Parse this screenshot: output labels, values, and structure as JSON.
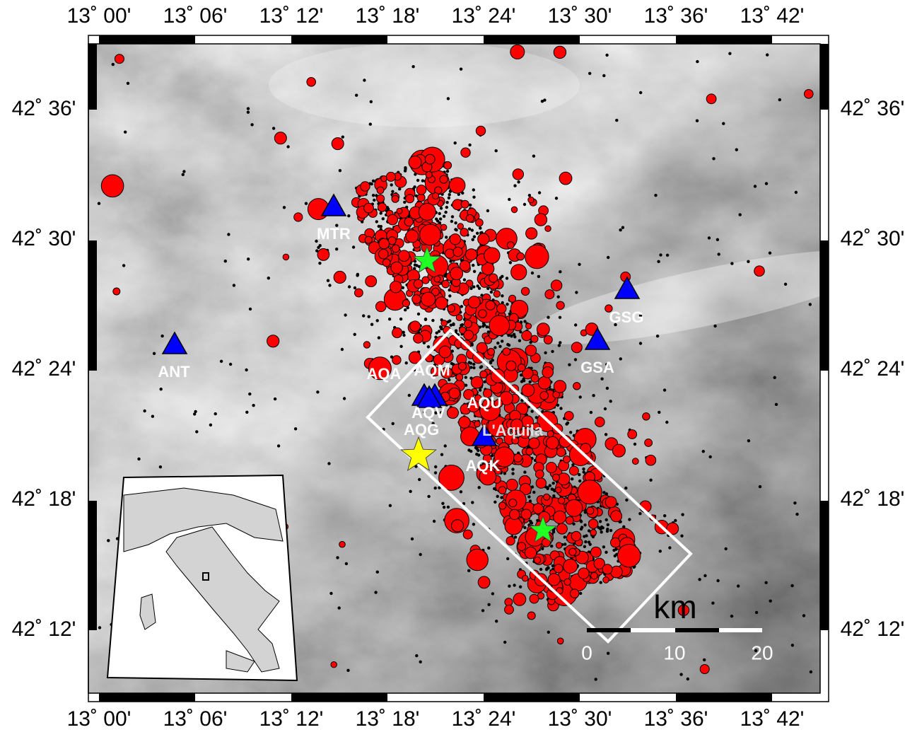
{
  "map": {
    "lon_ticks": [
      "13˚ 00'",
      "13˚ 06'",
      "13˚ 12'",
      "13˚ 18'",
      "13˚ 24'",
      "13˚ 30'",
      "13˚ 36'",
      "13˚ 42'"
    ],
    "lat_ticks": [
      "42˚ 36'",
      "42˚ 30'",
      "42˚ 24'",
      "42˚ 18'",
      "42˚ 12'"
    ],
    "stations": [
      "MTR",
      "GSG",
      "ANT",
      "GSA",
      "AQA",
      "AQM",
      "AQV",
      "AQU",
      "AQG",
      "AQK"
    ],
    "city": "L'Aquila",
    "scale_bar": {
      "unit": "km",
      "labels": [
        "0",
        "10",
        "20"
      ]
    }
  }
}
